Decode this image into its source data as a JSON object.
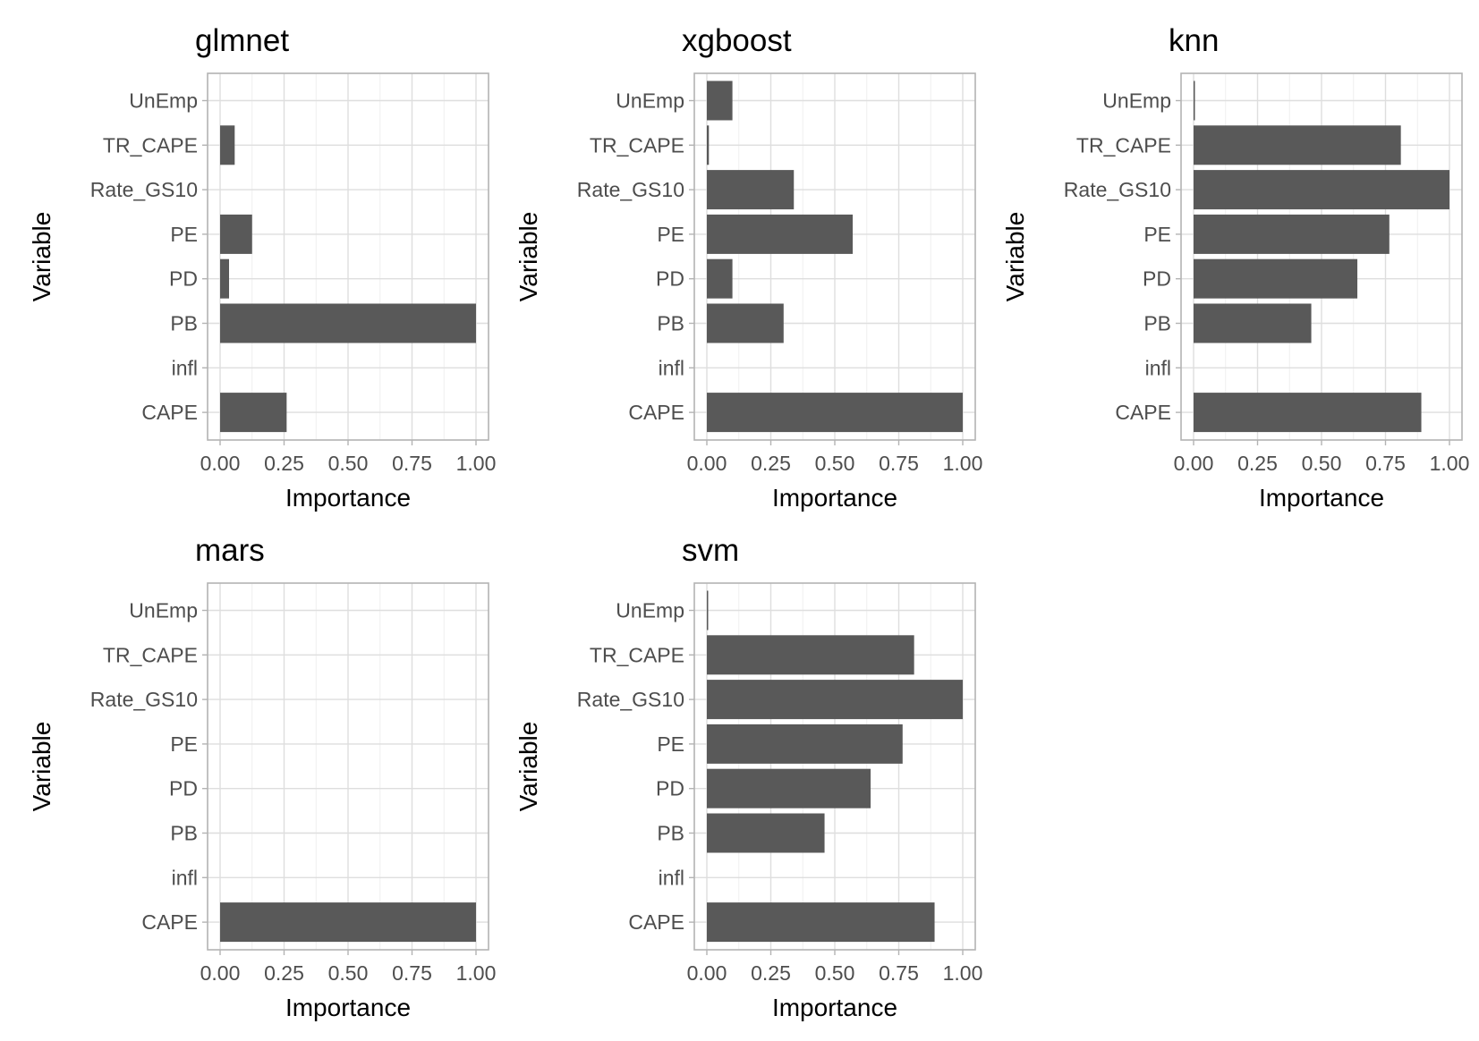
{
  "chart_data": [
    {
      "type": "bar",
      "orientation": "horizontal",
      "title": "glmnet",
      "xlabel": "Importance",
      "ylabel": "Variable",
      "xlim": [
        0,
        1
      ],
      "xticks": [
        "0.00",
        "0.25",
        "0.50",
        "0.75",
        "1.00"
      ],
      "categories": [
        "CAPE",
        "infl",
        "PB",
        "PD",
        "PE",
        "Rate_GS10",
        "TR_CAPE",
        "UnEmp"
      ],
      "values": [
        0.26,
        0,
        1.0,
        0.035,
        0.125,
        0,
        0.057,
        0
      ],
      "bar_color": "#595959",
      "grid": true
    },
    {
      "type": "bar",
      "orientation": "horizontal",
      "title": "xgboost",
      "xlabel": "Importance",
      "ylabel": "Variable",
      "xlim": [
        0,
        1
      ],
      "xticks": [
        "0.00",
        "0.25",
        "0.50",
        "0.75",
        "1.00"
      ],
      "categories": [
        "CAPE",
        "infl",
        "PB",
        "PD",
        "PE",
        "Rate_GS10",
        "TR_CAPE",
        "UnEmp"
      ],
      "values": [
        1.0,
        0,
        0.3,
        0.1,
        0.57,
        0.34,
        0.008,
        0.1
      ],
      "bar_color": "#595959",
      "grid": true
    },
    {
      "type": "bar",
      "orientation": "horizontal",
      "title": "knn",
      "xlabel": "Importance",
      "ylabel": "Variable",
      "xlim": [
        0,
        1
      ],
      "xticks": [
        "0.00",
        "0.25",
        "0.50",
        "0.75",
        "1.00"
      ],
      "categories": [
        "CAPE",
        "infl",
        "PB",
        "PD",
        "PE",
        "Rate_GS10",
        "TR_CAPE",
        "UnEmp"
      ],
      "values": [
        0.89,
        0,
        0.46,
        0.64,
        0.765,
        1.0,
        0.81,
        0.005
      ],
      "bar_color": "#595959",
      "grid": true
    },
    {
      "type": "bar",
      "orientation": "horizontal",
      "title": "mars",
      "xlabel": "Importance",
      "ylabel": "Variable",
      "xlim": [
        0,
        1
      ],
      "xticks": [
        "0.00",
        "0.25",
        "0.50",
        "0.75",
        "1.00"
      ],
      "categories": [
        "CAPE",
        "infl",
        "PB",
        "PD",
        "PE",
        "Rate_GS10",
        "TR_CAPE",
        "UnEmp"
      ],
      "values": [
        1.0,
        0,
        0,
        0,
        0,
        0,
        0,
        0
      ],
      "bar_color": "#595959",
      "grid": true
    },
    {
      "type": "bar",
      "orientation": "horizontal",
      "title": "svm",
      "xlabel": "Importance",
      "ylabel": "Variable",
      "xlim": [
        0,
        1
      ],
      "xticks": [
        "0.00",
        "0.25",
        "0.50",
        "0.75",
        "1.00"
      ],
      "categories": [
        "CAPE",
        "infl",
        "PB",
        "PD",
        "PE",
        "Rate_GS10",
        "TR_CAPE",
        "UnEmp"
      ],
      "values": [
        0.89,
        0,
        0.46,
        0.64,
        0.765,
        1.0,
        0.81,
        0.005
      ],
      "bar_color": "#595959",
      "grid": true
    }
  ]
}
